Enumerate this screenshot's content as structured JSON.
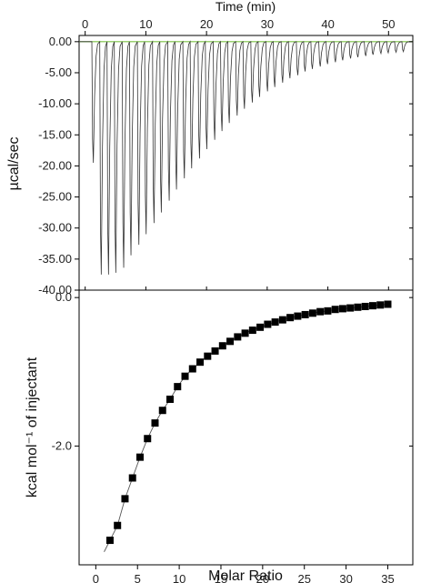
{
  "chart_data": [
    {
      "type": "line",
      "title": "",
      "xlabel": "Time (min)",
      "ylabel": "µcal/sec",
      "xlim": [
        -1,
        54
      ],
      "ylim": [
        -40,
        1
      ],
      "x_ticks": [
        0,
        10,
        20,
        30,
        40,
        50
      ],
      "y_ticks": [
        0,
        -5,
        -10,
        -15,
        -20,
        -25,
        -30,
        -35,
        -40
      ],
      "y_tick_labels": [
        "0.00",
        "-5.00",
        "-10.00",
        "-15.00",
        "-20.00",
        "-25.00",
        "-30.00",
        "-35.00",
        "-40.00"
      ],
      "x_tick_labels": [
        "0",
        "10",
        "20",
        "30",
        "40",
        "50"
      ],
      "baseline_color": "#7ac143",
      "line_color": "#333333",
      "series": [
        {
          "injection_times": [
            1.1,
            2.4,
            3.6,
            4.8,
            6.1,
            7.3,
            8.6,
            9.8,
            11.1,
            12.3,
            13.6,
            14.8,
            16.1,
            17.3,
            18.6,
            19.8,
            21.1,
            22.3,
            23.5,
            24.8,
            26.0,
            27.3,
            28.5,
            29.8,
            31.0,
            32.3,
            33.5,
            34.8,
            36.0,
            37.2,
            38.5,
            39.7,
            41.0,
            42.2,
            43.5,
            44.7,
            46.0,
            47.2,
            48.5,
            49.7,
            51.0,
            52.2
          ],
          "peak_minima": [
            -19.5,
            -37.5,
            -37.5,
            -37.2,
            -36.4,
            -34.4,
            -32.7,
            -31.0,
            -29.2,
            -27.5,
            -25.6,
            -23.8,
            -22.0,
            -20.4,
            -18.8,
            -17.3,
            -15.8,
            -14.4,
            -13.1,
            -11.9,
            -10.8,
            -9.8,
            -8.9,
            -8.0,
            -7.3,
            -6.6,
            -5.9,
            -5.4,
            -4.8,
            -4.4,
            -4.0,
            -3.6,
            -3.3,
            -3.0,
            -2.7,
            -2.5,
            -2.3,
            -2.1,
            -1.9,
            -1.8,
            -1.7,
            -1.6
          ]
        }
      ]
    },
    {
      "type": "scatter",
      "title": "",
      "xlabel": "Molar Ratio",
      "ylabel": "kcal mol⁻¹ of injectant",
      "xlim": [
        -2,
        38
      ],
      "ylim": [
        -3.6,
        0.1
      ],
      "x_ticks": [
        0,
        5,
        10,
        15,
        20,
        25,
        30,
        35
      ],
      "x_tick_labels": [
        "0",
        "5",
        "10",
        "15",
        "20",
        "25",
        "30",
        "35"
      ],
      "y_ticks": [
        0,
        -2
      ],
      "y_tick_labels": [
        "0.0",
        "-2.0"
      ],
      "marker": "square",
      "marker_color": "#000000",
      "fit_color": "#555555",
      "series": [
        {
          "x": [
            1.7,
            2.6,
            3.5,
            4.4,
            5.3,
            6.2,
            7.1,
            8.0,
            8.9,
            9.8,
            10.7,
            11.6,
            12.5,
            13.4,
            14.3,
            15.2,
            16.1,
            17.0,
            17.9,
            18.8,
            19.7,
            20.6,
            21.5,
            22.4,
            23.3,
            24.2,
            25.1,
            26.0,
            26.9,
            27.8,
            28.7,
            29.6,
            30.5,
            31.4,
            32.3,
            33.2,
            34.1,
            35.0
          ],
          "y": [
            -3.27,
            -3.07,
            -2.71,
            -2.43,
            -2.15,
            -1.9,
            -1.69,
            -1.52,
            -1.37,
            -1.2,
            -1.06,
            -0.96,
            -0.87,
            -0.79,
            -0.72,
            -0.65,
            -0.59,
            -0.53,
            -0.48,
            -0.44,
            -0.4,
            -0.36,
            -0.33,
            -0.3,
            -0.27,
            -0.25,
            -0.23,
            -0.21,
            -0.19,
            -0.18,
            -0.16,
            -0.15,
            -0.14,
            -0.13,
            -0.12,
            -0.11,
            -0.1,
            -0.09
          ]
        }
      ]
    }
  ]
}
